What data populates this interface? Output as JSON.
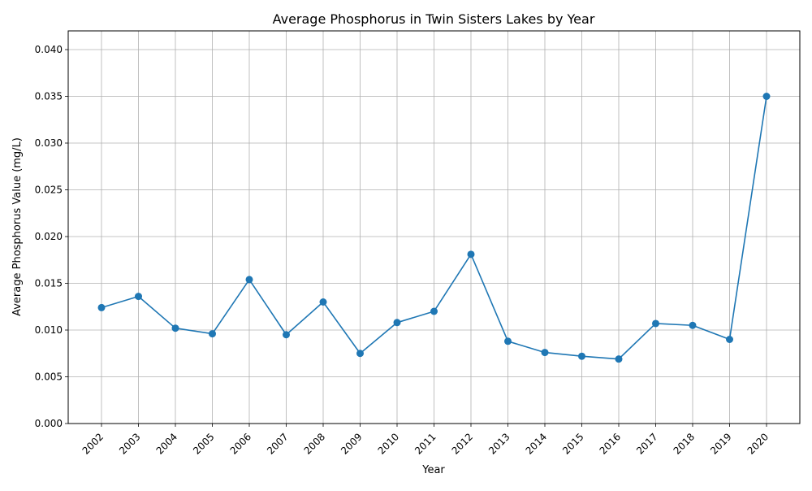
{
  "chart_data": {
    "type": "line",
    "title": "Average Phosphorus in Twin Sisters Lakes by Year",
    "xlabel": "Year",
    "ylabel": "Average Phosphorus Value (mg/L)",
    "categories": [
      "2002",
      "2003",
      "2004",
      "2005",
      "2006",
      "2007",
      "2008",
      "2009",
      "2010",
      "2011",
      "2012",
      "2013",
      "2014",
      "2015",
      "2016",
      "2017",
      "2018",
      "2019",
      "2020"
    ],
    "series": [
      {
        "values": [
          0.0124,
          0.0136,
          0.0102,
          0.0096,
          0.0154,
          0.0095,
          0.013,
          0.0075,
          0.0108,
          0.012,
          0.0181,
          0.0088,
          0.0076,
          0.0072,
          0.0069,
          0.0107,
          0.0105,
          0.009,
          0.035
        ],
        "color": "#1f77b4"
      }
    ],
    "ylim": [
      0,
      0.042
    ],
    "yticks": [
      "0.000",
      "0.005",
      "0.010",
      "0.015",
      "0.020",
      "0.025",
      "0.030",
      "0.035",
      "0.040"
    ],
    "grid": true,
    "marker": "circle"
  }
}
